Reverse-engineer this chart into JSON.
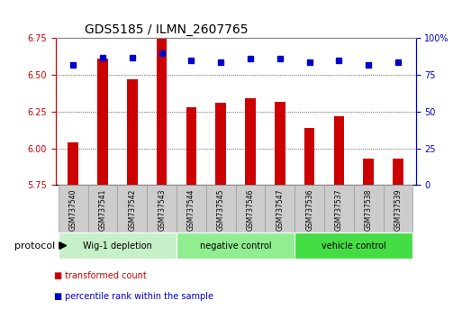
{
  "title": "GDS5185 / ILMN_2607765",
  "samples": [
    "GSM737540",
    "GSM737541",
    "GSM737542",
    "GSM737543",
    "GSM737544",
    "GSM737545",
    "GSM737546",
    "GSM737547",
    "GSM737536",
    "GSM737537",
    "GSM737538",
    "GSM737539"
  ],
  "bar_values": [
    6.04,
    6.61,
    6.47,
    6.75,
    6.28,
    6.31,
    6.34,
    6.32,
    6.14,
    6.22,
    5.93,
    5.93
  ],
  "dot_values": [
    82,
    87,
    87,
    90,
    85,
    84,
    86,
    86,
    84,
    85,
    82,
    84
  ],
  "ylim": [
    5.75,
    6.75
  ],
  "y2lim": [
    0,
    100
  ],
  "yticks": [
    5.75,
    6.0,
    6.25,
    6.5,
    6.75
  ],
  "y2ticks": [
    0,
    25,
    50,
    75,
    100
  ],
  "bar_color": "#cc0000",
  "dot_color": "#0000cc",
  "dot_size": 5,
  "bar_width": 0.35,
  "groups": [
    {
      "label": "Wig-1 depletion",
      "start": 0,
      "end": 4,
      "color": "#c8f0c8"
    },
    {
      "label": "negative control",
      "start": 4,
      "end": 8,
      "color": "#90ee90"
    },
    {
      "label": "vehicle control",
      "start": 8,
      "end": 12,
      "color": "#44dd44"
    }
  ],
  "sample_box_color": "#cccccc",
  "sample_box_edge": "#999999",
  "ylabel_color": "#cc0000",
  "y2label_color": "#0000cc",
  "legend_items": [
    {
      "label": "transformed count",
      "color": "#cc0000"
    },
    {
      "label": "percentile rank within the sample",
      "color": "#0000cc"
    }
  ],
  "protocol_label": "protocol",
  "background_color": "#ffffff",
  "title_fontsize": 10,
  "tick_fontsize": 7,
  "sample_fontsize": 5.5,
  "group_fontsize": 7,
  "legend_fontsize": 7
}
